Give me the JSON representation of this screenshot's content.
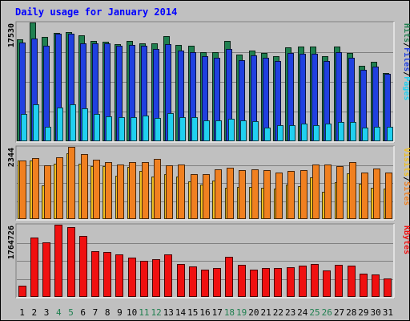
{
  "chart_data": [
    {
      "type": "bar",
      "panel": "top",
      "title": "Daily usage for January 2014",
      "ymax_label": "17530",
      "categories": [
        "1",
        "2",
        "3",
        "4",
        "5",
        "6",
        "7",
        "8",
        "9",
        "10",
        "11",
        "12",
        "13",
        "14",
        "15",
        "16",
        "17",
        "18",
        "19",
        "20",
        "21",
        "22",
        "23",
        "24",
        "25",
        "26",
        "27",
        "28",
        "29",
        "30",
        "31"
      ],
      "series": [
        {
          "name": "Hits",
          "color": "#208050",
          "values": [
            15000,
            17530,
            15350,
            16000,
            16150,
            15600,
            14820,
            14700,
            14350,
            14850,
            14450,
            14450,
            15480,
            14270,
            14100,
            13160,
            13130,
            14780,
            12820,
            13390,
            12990,
            12570,
            13830,
            13930,
            13930,
            12590,
            13950,
            13070,
            11100,
            11680,
            10030
          ]
        },
        {
          "name": "Files",
          "color": "#2040e0",
          "values": [
            14600,
            15200,
            14100,
            15900,
            15850,
            14500,
            14500,
            14450,
            14100,
            14170,
            14040,
            13600,
            14290,
            13430,
            13100,
            12590,
            12310,
            13670,
            11920,
            12710,
            12350,
            11880,
            13000,
            12890,
            12900,
            11850,
            13110,
            12300,
            10530,
            11020,
            9980
          ]
        },
        {
          "name": "Pages",
          "color": "#20d0f0",
          "values": [
            4050,
            5500,
            2100,
            4950,
            5400,
            4850,
            4040,
            3720,
            3580,
            3590,
            3780,
            3380,
            4150,
            3590,
            3580,
            3060,
            3060,
            3330,
            3030,
            2990,
            2030,
            2320,
            2380,
            2590,
            2320,
            2590,
            2890,
            2790,
            1990,
            2130,
            2130
          ]
        }
      ]
    },
    {
      "type": "bar",
      "panel": "middle",
      "ymax_label": "2344",
      "categories": [
        "1",
        "2",
        "3",
        "4",
        "5",
        "6",
        "7",
        "8",
        "9",
        "10",
        "11",
        "12",
        "13",
        "14",
        "15",
        "16",
        "17",
        "18",
        "19",
        "20",
        "21",
        "22",
        "23",
        "24",
        "25",
        "26",
        "27",
        "28",
        "29",
        "30",
        "31"
      ],
      "series": [
        {
          "name": "Visits",
          "color": "#f0c020",
          "values": [
            1900,
            1900,
            1100,
            1810,
            2140,
            1810,
            1720,
            1720,
            1400,
            1700,
            1570,
            1380,
            1460,
            1370,
            1230,
            1130,
            1250,
            1010,
            1030,
            1040,
            1010,
            990,
            1110,
            1080,
            1360,
            880,
            1200,
            1490,
            1140,
            1020,
            1000
          ]
        },
        {
          "name": "Sites",
          "color": "#f08020",
          "values": [
            1900,
            1980,
            1750,
            2010,
            2344,
            2110,
            1920,
            1840,
            1760,
            1860,
            1850,
            1960,
            1740,
            1760,
            1460,
            1470,
            1610,
            1660,
            1580,
            1620,
            1580,
            1520,
            1550,
            1600,
            1770,
            1770,
            1720,
            1850,
            1510,
            1640,
            1520
          ]
        }
      ]
    },
    {
      "type": "bar",
      "panel": "bottom",
      "ymax_label": "1764726",
      "categories": [
        "1",
        "2",
        "3",
        "4",
        "5",
        "6",
        "7",
        "8",
        "9",
        "10",
        "11",
        "12",
        "13",
        "14",
        "15",
        "16",
        "17",
        "18",
        "19",
        "20",
        "21",
        "22",
        "23",
        "24",
        "25",
        "26",
        "27",
        "28",
        "29",
        "30",
        "31"
      ],
      "series": [
        {
          "name": "KBytes",
          "color": "#f01010",
          "values": [
            280000,
            1460000,
            1340000,
            1764726,
            1710000,
            1500000,
            1120000,
            1100000,
            1030000,
            970000,
            880000,
            920000,
            1040000,
            810000,
            750000,
            660000,
            700000,
            990000,
            780000,
            670000,
            710000,
            710000,
            720000,
            770000,
            800000,
            650000,
            780000,
            770000,
            570000,
            540000,
            450000
          ]
        }
      ]
    }
  ],
  "x_label_colors": {
    "weekday": "#000000",
    "weekend": "#208050"
  },
  "weekend_days": [
    "4",
    "5",
    "11",
    "12",
    "18",
    "19",
    "25",
    "26"
  ],
  "ylabel_right": {
    "top": [
      {
        "text": "Pages",
        "color": "#20d0f0"
      },
      {
        "text": "/",
        "color": "#000000"
      },
      {
        "text": "Files",
        "color": "#2040e0"
      },
      {
        "text": "/",
        "color": "#000000"
      },
      {
        "text": "Hits",
        "color": "#208050"
      }
    ],
    "middle": [
      {
        "text": "Sites",
        "color": "#f08020"
      },
      {
        "text": "/",
        "color": "#000000"
      },
      {
        "text": "Visits",
        "color": "#f0c020"
      }
    ],
    "bottom": [
      {
        "text": "KBytes",
        "color": "#f01010"
      }
    ]
  },
  "colors": {
    "background": "#c0c0c0",
    "grid": "#808080",
    "title": "#0000ff"
  }
}
